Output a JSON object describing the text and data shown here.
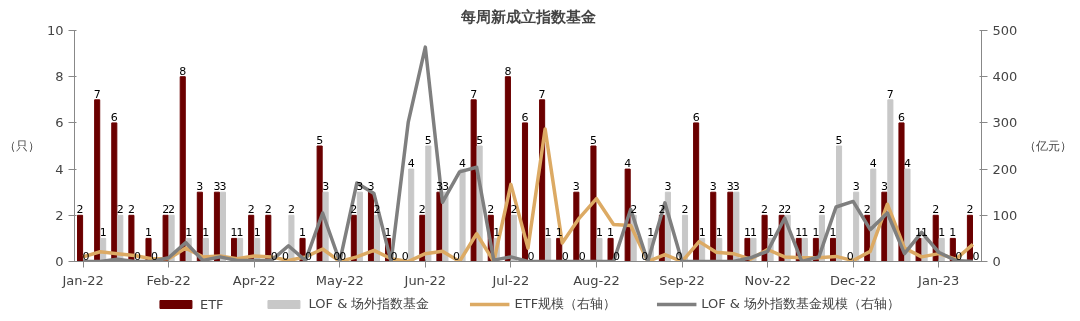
{
  "chart_data": {
    "type": "bar",
    "title": "每周新成立指数基金",
    "ylabel": "（只）",
    "y2label": "（亿元）",
    "categories": [
      "Jan-22",
      null,
      null,
      null,
      null,
      "Feb-22",
      null,
      null,
      null,
      null,
      "Apr-22",
      null,
      null,
      null,
      null,
      "May-22",
      null,
      null,
      null,
      null,
      "Jun-22",
      null,
      null,
      null,
      null,
      "Jul-22",
      null,
      null,
      null,
      null,
      "Aug-22",
      null,
      null,
      null,
      null,
      "Sep-22",
      null,
      null,
      null,
      null,
      "Nov-22",
      null,
      null,
      null,
      null,
      "Dec-22",
      null,
      null,
      null,
      null,
      "Jan-23",
      null,
      null
    ],
    "series": [
      {
        "name": "ETF",
        "color": "#6b0000",
        "values": [
          2,
          7,
          6,
          2,
          1,
          2,
          8,
          3,
          3,
          1,
          2,
          2,
          0,
          1,
          5,
          0,
          2,
          3,
          1,
          0,
          2,
          3,
          0,
          7,
          2,
          8,
          6,
          7,
          1,
          3,
          5,
          1,
          4,
          0,
          2,
          0,
          6,
          3,
          3,
          1,
          2,
          2,
          1,
          1,
          1,
          0,
          2,
          3,
          6,
          1,
          2,
          1,
          2
        ],
        "value_labels": [
          "2",
          "7",
          "6",
          "2",
          "1",
          "2",
          "8",
          "3",
          "3",
          "1",
          "2",
          "2",
          "0",
          "1",
          "5",
          "0",
          "2",
          "3",
          "1",
          "0",
          "2",
          "3",
          "0",
          "7",
          "2",
          "8",
          "6",
          "7",
          "1",
          "3",
          "5",
          "1",
          "4",
          "0",
          "2",
          "0",
          "6",
          "3",
          "3",
          "1",
          "2",
          "2",
          "1",
          "1",
          "1",
          "0",
          "2",
          "3",
          "6",
          "1",
          "2",
          "1",
          "2"
        ]
      },
      {
        "name": "LOF & 场外指数基金",
        "color": "#c8c8c8",
        "values": [
          0,
          1,
          2,
          0,
          0,
          2,
          1,
          1,
          3,
          1,
          1,
          0,
          2,
          0,
          3,
          0,
          3,
          2,
          0,
          4,
          5,
          3,
          4,
          5,
          1,
          2,
          0,
          1,
          0,
          0,
          1,
          0,
          2,
          1,
          3,
          2,
          1,
          1,
          3,
          1,
          1,
          2,
          1,
          2,
          5,
          3,
          4,
          7,
          4,
          1,
          1,
          0,
          0
        ],
        "value_labels": [
          "0",
          "1",
          "2",
          "0",
          "0",
          "2",
          "1",
          "1",
          "3",
          "1",
          "1",
          "0",
          "2",
          "0",
          "3",
          "0",
          "3",
          "2",
          "0",
          "4",
          "5",
          "3",
          "4",
          "5",
          "1",
          "2",
          "0",
          "1",
          "0",
          "0",
          "1",
          "0",
          "2",
          "1",
          "3",
          "2",
          "1",
          "1",
          "3",
          "1",
          "1",
          "2",
          "1",
          "2",
          "5",
          "3",
          "4",
          "7",
          "4",
          "1",
          "1",
          "0",
          "0"
        ]
      },
      {
        "name": "ETF规模（右轴）",
        "type": "line",
        "axis": "y2",
        "color": "#dcaa64",
        "values": [
          10,
          21,
          17,
          13,
          6,
          6,
          29,
          10,
          12,
          6,
          12,
          10,
          2,
          10,
          27,
          0,
          10,
          24,
          6,
          0,
          17,
          22,
          0,
          60,
          0,
          167,
          29,
          287,
          40,
          94,
          136,
          80,
          78,
          0,
          15,
          0,
          43,
          20,
          17,
          5,
          26,
          10,
          8,
          8,
          11,
          2,
          22,
          124,
          29,
          10,
          17,
          5,
          37
        ]
      },
      {
        "name": "LOF & 场外指数基金规模（右轴）",
        "type": "line",
        "axis": "y2",
        "color": "#7f7f7f",
        "values": [
          0,
          0,
          5,
          0,
          0,
          8,
          41,
          2,
          10,
          2,
          2,
          2,
          34,
          2,
          105,
          0,
          170,
          147,
          0,
          301,
          464,
          128,
          194,
          204,
          3,
          10,
          0,
          0,
          0,
          0,
          0,
          0,
          113,
          0,
          127,
          0,
          0,
          0,
          0,
          8,
          22,
          94,
          0,
          10,
          118,
          130,
          69,
          105,
          17,
          63,
          20,
          2,
          0
        ]
      }
    ],
    "ylim": [
      0,
      10
    ],
    "yticks": [
      0,
      2,
      4,
      6,
      8,
      10
    ],
    "y2lim": [
      0,
      500
    ],
    "y2ticks": [
      0,
      100,
      200,
      300,
      400,
      500
    ],
    "legend": "bottom"
  }
}
